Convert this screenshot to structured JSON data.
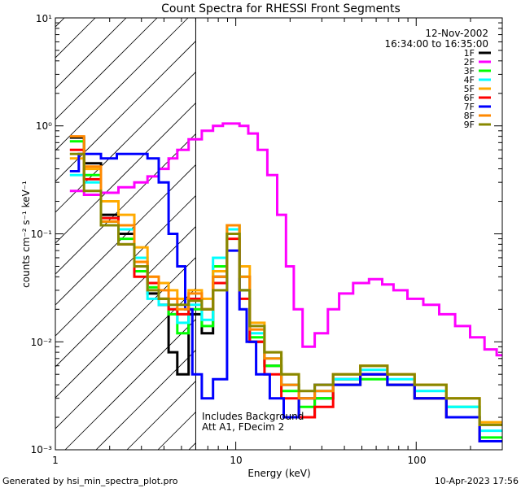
{
  "chart_data": {
    "type": "line",
    "title": "Count Spectra for RHESSI Front Segments",
    "xlabel": "Energy (keV)",
    "ylabel": "counts cm⁻² s⁻¹ keV⁻¹",
    "xscale": "log",
    "yscale": "log",
    "xlim": [
      1,
      300
    ],
    "ylim": [
      0.001,
      10
    ],
    "x_ticks": [
      "1",
      "10",
      "100"
    ],
    "y_ticks": [
      "10⁻³",
      "10⁻²",
      "10⁻¹",
      "10⁰",
      "10¹"
    ],
    "date": "12-Nov-2002",
    "time_range": "16:34:00 to 16:35:00",
    "hatched_region_upper_keV": 6,
    "annotations": [
      "Includes Background",
      "Att A1, FDecim 2"
    ],
    "footer_left": "Generated by hsi_min_spectra_plot.pro",
    "footer_right": "10-Apr-2023 17:56",
    "series": [
      {
        "name": "1F",
        "color": "#000000",
        "points": [
          [
            1.3,
            0.78
          ],
          [
            1.6,
            0.45
          ],
          [
            2.0,
            0.15
          ],
          [
            2.5,
            0.1
          ],
          [
            3.0,
            0.05
          ],
          [
            3.5,
            0.028
          ],
          [
            4.0,
            0.022
          ],
          [
            4.5,
            0.008
          ],
          [
            5.0,
            0.005
          ],
          [
            6.0,
            0.018
          ],
          [
            7.0,
            0.012
          ],
          [
            8.0,
            0.04
          ],
          [
            10.0,
            0.1
          ],
          [
            11.0,
            0.03
          ],
          [
            13.0,
            0.01
          ],
          [
            16.0,
            0.006
          ],
          [
            20.0,
            0.004
          ],
          [
            25.0,
            0.002
          ],
          [
            30.0,
            0.003
          ],
          [
            40.0,
            0.0045
          ],
          [
            60.0,
            0.005
          ],
          [
            80.0,
            0.004
          ],
          [
            120.0,
            0.003
          ],
          [
            180.0,
            0.002
          ],
          [
            280.0,
            0.0012
          ]
        ]
      },
      {
        "name": "2F",
        "color": "#ff00ff",
        "points": [
          [
            1.3,
            0.25
          ],
          [
            1.6,
            0.23
          ],
          [
            2.0,
            0.24
          ],
          [
            2.5,
            0.27
          ],
          [
            3.0,
            0.3
          ],
          [
            3.5,
            0.34
          ],
          [
            4.0,
            0.4
          ],
          [
            4.5,
            0.5
          ],
          [
            5.0,
            0.6
          ],
          [
            6.0,
            0.75
          ],
          [
            7.0,
            0.9
          ],
          [
            8.0,
            1.0
          ],
          [
            9.0,
            1.05
          ],
          [
            10.0,
            1.05
          ],
          [
            11.0,
            1.0
          ],
          [
            12.5,
            0.85
          ],
          [
            14.0,
            0.6
          ],
          [
            16.0,
            0.35
          ],
          [
            18.0,
            0.15
          ],
          [
            20.0,
            0.05
          ],
          [
            22.0,
            0.02
          ],
          [
            25.0,
            0.009
          ],
          [
            30.0,
            0.012
          ],
          [
            35.0,
            0.02
          ],
          [
            40.0,
            0.028
          ],
          [
            50.0,
            0.035
          ],
          [
            60.0,
            0.038
          ],
          [
            70.0,
            0.034
          ],
          [
            80.0,
            0.03
          ],
          [
            100.0,
            0.025
          ],
          [
            120.0,
            0.022
          ],
          [
            150.0,
            0.018
          ],
          [
            180.0,
            0.014
          ],
          [
            220.0,
            0.011
          ],
          [
            260.0,
            0.0085
          ],
          [
            300.0,
            0.0075
          ]
        ]
      },
      {
        "name": "3F",
        "color": "#00ff00",
        "points": [
          [
            1.3,
            0.72
          ],
          [
            1.6,
            0.35
          ],
          [
            2.0,
            0.13
          ],
          [
            2.5,
            0.09
          ],
          [
            3.0,
            0.045
          ],
          [
            3.5,
            0.032
          ],
          [
            4.0,
            0.025
          ],
          [
            4.5,
            0.018
          ],
          [
            5.0,
            0.012
          ],
          [
            6.0,
            0.02
          ],
          [
            7.0,
            0.014
          ],
          [
            8.0,
            0.05
          ],
          [
            10.0,
            0.12
          ],
          [
            11.0,
            0.04
          ],
          [
            13.0,
            0.011
          ],
          [
            16.0,
            0.006
          ],
          [
            20.0,
            0.0035
          ],
          [
            25.0,
            0.0025
          ],
          [
            30.0,
            0.003
          ],
          [
            40.0,
            0.004
          ],
          [
            60.0,
            0.0045
          ],
          [
            80.0,
            0.004
          ],
          [
            120.0,
            0.003
          ],
          [
            180.0,
            0.0025
          ],
          [
            280.0,
            0.0013
          ]
        ]
      },
      {
        "name": "4F",
        "color": "#00ffff",
        "points": [
          [
            1.3,
            0.35
          ],
          [
            1.6,
            0.3
          ],
          [
            2.0,
            0.12
          ],
          [
            2.5,
            0.11
          ],
          [
            3.0,
            0.06
          ],
          [
            3.5,
            0.025
          ],
          [
            4.0,
            0.022
          ],
          [
            4.5,
            0.02
          ],
          [
            5.0,
            0.015
          ],
          [
            6.0,
            0.022
          ],
          [
            7.0,
            0.016
          ],
          [
            8.0,
            0.06
          ],
          [
            10.0,
            0.11
          ],
          [
            11.0,
            0.03
          ],
          [
            13.0,
            0.012
          ],
          [
            16.0,
            0.007
          ],
          [
            20.0,
            0.004
          ],
          [
            25.0,
            0.003
          ],
          [
            30.0,
            0.0035
          ],
          [
            40.0,
            0.0045
          ],
          [
            60.0,
            0.0055
          ],
          [
            80.0,
            0.0045
          ],
          [
            120.0,
            0.0035
          ],
          [
            180.0,
            0.0025
          ],
          [
            280.0,
            0.0015
          ]
        ]
      },
      {
        "name": "5F",
        "color": "#ffaa00",
        "points": [
          [
            1.3,
            0.5
          ],
          [
            1.6,
            0.4
          ],
          [
            2.0,
            0.2
          ],
          [
            2.5,
            0.15
          ],
          [
            3.0,
            0.075
          ],
          [
            3.5,
            0.04
          ],
          [
            4.0,
            0.035
          ],
          [
            4.5,
            0.03
          ],
          [
            5.0,
            0.025
          ],
          [
            6.0,
            0.03
          ],
          [
            7.0,
            0.025
          ],
          [
            8.0,
            0.045
          ],
          [
            10.0,
            0.12
          ],
          [
            11.0,
            0.05
          ],
          [
            13.0,
            0.015
          ],
          [
            16.0,
            0.008
          ],
          [
            20.0,
            0.005
          ],
          [
            25.0,
            0.003
          ],
          [
            30.0,
            0.004
          ],
          [
            40.0,
            0.005
          ],
          [
            60.0,
            0.006
          ],
          [
            80.0,
            0.005
          ],
          [
            120.0,
            0.004
          ],
          [
            180.0,
            0.003
          ],
          [
            280.0,
            0.0018
          ]
        ]
      },
      {
        "name": "6F",
        "color": "#ff0000",
        "points": [
          [
            1.3,
            0.6
          ],
          [
            1.6,
            0.32
          ],
          [
            2.0,
            0.14
          ],
          [
            2.5,
            0.08
          ],
          [
            3.0,
            0.04
          ],
          [
            3.5,
            0.035
          ],
          [
            4.0,
            0.025
          ],
          [
            4.5,
            0.02
          ],
          [
            5.0,
            0.018
          ],
          [
            6.0,
            0.025
          ],
          [
            7.0,
            0.02
          ],
          [
            8.0,
            0.035
          ],
          [
            10.0,
            0.09
          ],
          [
            11.0,
            0.025
          ],
          [
            13.0,
            0.01
          ],
          [
            16.0,
            0.005
          ],
          [
            20.0,
            0.003
          ],
          [
            25.0,
            0.002
          ],
          [
            30.0,
            0.0025
          ],
          [
            40.0,
            0.004
          ],
          [
            60.0,
            0.005
          ],
          [
            80.0,
            0.004
          ],
          [
            120.0,
            0.003
          ],
          [
            180.0,
            0.002
          ],
          [
            280.0,
            0.0012
          ]
        ]
      },
      {
        "name": "7F",
        "color": "#0000ff",
        "points": [
          [
            1.3,
            0.38
          ],
          [
            1.4,
            0.55
          ],
          [
            1.6,
            0.55
          ],
          [
            2.0,
            0.5
          ],
          [
            2.4,
            0.55
          ],
          [
            3.0,
            0.55
          ],
          [
            3.5,
            0.5
          ],
          [
            4.0,
            0.3
          ],
          [
            4.5,
            0.1
          ],
          [
            5.0,
            0.05
          ],
          [
            5.5,
            0.02
          ],
          [
            6.0,
            0.005
          ],
          [
            7.0,
            0.003
          ],
          [
            8.0,
            0.0045
          ],
          [
            10.0,
            0.07
          ],
          [
            11.0,
            0.02
          ],
          [
            12.0,
            0.01
          ],
          [
            14.0,
            0.005
          ],
          [
            17.0,
            0.003
          ],
          [
            20.0,
            0.002
          ],
          [
            25.0,
            0.003
          ],
          [
            30.0,
            0.004
          ],
          [
            40.0,
            0.004
          ],
          [
            60.0,
            0.005
          ],
          [
            80.0,
            0.004
          ],
          [
            120.0,
            0.003
          ],
          [
            180.0,
            0.002
          ],
          [
            280.0,
            0.0012
          ]
        ]
      },
      {
        "name": "8F",
        "color": "#ff8800",
        "points": [
          [
            1.3,
            0.8
          ],
          [
            1.6,
            0.42
          ],
          [
            2.0,
            0.13
          ],
          [
            2.5,
            0.12
          ],
          [
            3.0,
            0.055
          ],
          [
            3.5,
            0.04
          ],
          [
            4.0,
            0.03
          ],
          [
            4.5,
            0.025
          ],
          [
            5.0,
            0.02
          ],
          [
            6.0,
            0.028
          ],
          [
            7.0,
            0.02
          ],
          [
            8.0,
            0.04
          ],
          [
            10.0,
            0.12
          ],
          [
            11.0,
            0.04
          ],
          [
            13.0,
            0.013
          ],
          [
            16.0,
            0.007
          ],
          [
            20.0,
            0.004
          ],
          [
            25.0,
            0.003
          ],
          [
            30.0,
            0.0035
          ],
          [
            40.0,
            0.005
          ],
          [
            60.0,
            0.006
          ],
          [
            80.0,
            0.005
          ],
          [
            120.0,
            0.004
          ],
          [
            180.0,
            0.003
          ],
          [
            280.0,
            0.0017
          ]
        ]
      },
      {
        "name": "9F",
        "color": "#888800",
        "points": [
          [
            1.3,
            0.55
          ],
          [
            1.6,
            0.25
          ],
          [
            2.0,
            0.12
          ],
          [
            2.5,
            0.08
          ],
          [
            3.0,
            0.05
          ],
          [
            3.5,
            0.03
          ],
          [
            4.0,
            0.025
          ],
          [
            4.5,
            0.022
          ],
          [
            5.0,
            0.022
          ],
          [
            6.0,
            0.024
          ],
          [
            7.0,
            0.02
          ],
          [
            8.0,
            0.03
          ],
          [
            10.0,
            0.1
          ],
          [
            11.0,
            0.03
          ],
          [
            13.0,
            0.014
          ],
          [
            16.0,
            0.008
          ],
          [
            20.0,
            0.005
          ],
          [
            25.0,
            0.0035
          ],
          [
            30.0,
            0.004
          ],
          [
            40.0,
            0.005
          ],
          [
            60.0,
            0.006
          ],
          [
            80.0,
            0.005
          ],
          [
            120.0,
            0.004
          ],
          [
            180.0,
            0.003
          ],
          [
            280.0,
            0.0017
          ]
        ]
      }
    ]
  }
}
